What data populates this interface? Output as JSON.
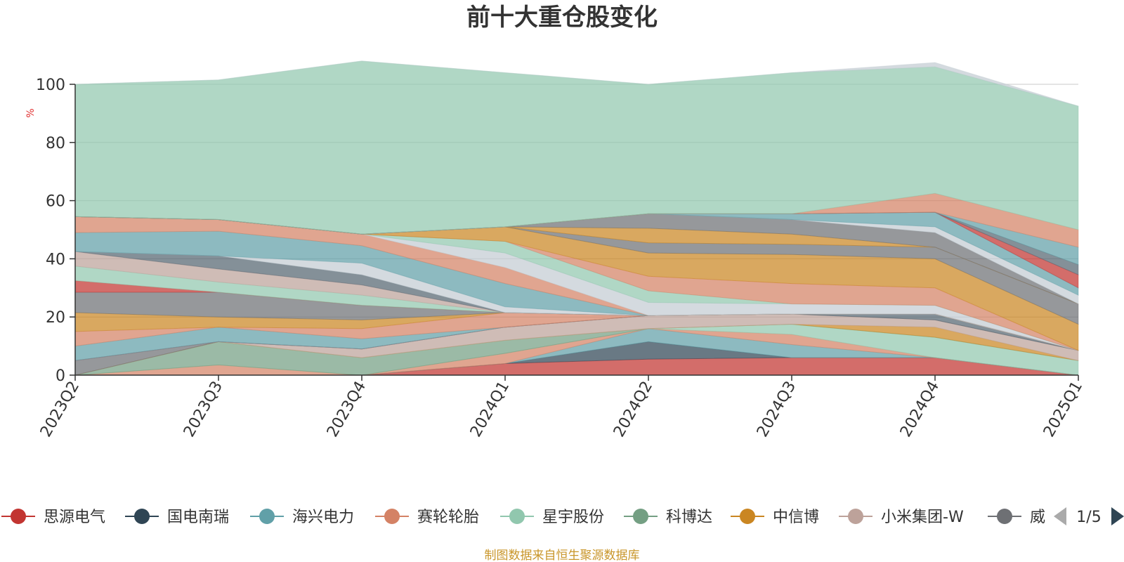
{
  "chart_data": {
    "type": "area",
    "stacked": true,
    "title": "前十大重仓股变化",
    "ylabel": "%",
    "ylim": [
      0,
      100
    ],
    "yticks": [
      0,
      20,
      40,
      60,
      80,
      100
    ],
    "categories": [
      "2023Q2",
      "2023Q3",
      "2023Q4",
      "2024Q1",
      "2024Q2",
      "2024Q3",
      "2024Q4",
      "2025Q1"
    ],
    "grid": true,
    "legend_position": "bottom",
    "legend_page": "1/5",
    "source": "制图数据来自恒生聚源数据库",
    "series": [
      {
        "name": "思源电气",
        "color": "#c23531",
        "values": [
          0,
          0,
          0,
          4,
          5.5,
          6,
          6,
          0
        ]
      },
      {
        "name": "国电南瑞",
        "color": "#2f4554",
        "values": [
          0,
          0,
          0,
          0,
          6,
          0,
          0,
          0
        ]
      },
      {
        "name": "海兴电力",
        "color": "#61a0a8",
        "values": [
          0,
          0,
          0,
          0,
          4.5,
          4.5,
          0,
          0
        ]
      },
      {
        "name": "赛轮轮胎",
        "color": "#d48265",
        "values": [
          0,
          3.5,
          0,
          3.5,
          0,
          3.5,
          0,
          0
        ]
      },
      {
        "name": "星宇股份",
        "color": "#91c7ae",
        "values": [
          0,
          0,
          0,
          0,
          0,
          3.5,
          7,
          5
        ]
      },
      {
        "name": "科博达",
        "color": "#749f83",
        "values": [
          0,
          8,
          6,
          4.5,
          0,
          0,
          0,
          0
        ]
      },
      {
        "name": "中信博",
        "color": "#ca8622",
        "values": [
          0,
          0,
          0,
          0,
          0,
          0,
          3.5,
          0
        ]
      },
      {
        "name": "小米集团-W",
        "color": "#bda29a",
        "values": [
          0,
          0,
          3,
          4.5,
          4.5,
          3.5,
          2.5,
          3.5
        ]
      },
      {
        "name": "威",
        "color": "#6e7074",
        "values": [
          5,
          0,
          0,
          0,
          0,
          0,
          0,
          0
        ]
      },
      {
        "name": "",
        "color": "#546570",
        "values": [
          0,
          0,
          0,
          0,
          0,
          0,
          2,
          0
        ]
      },
      {
        "name": "",
        "color": "#c4ccd3",
        "values": [
          0,
          0,
          0,
          0,
          0,
          0,
          0,
          0
        ]
      },
      {
        "name": "",
        "color": "#c23531",
        "values": [
          0,
          0,
          0,
          0,
          0,
          0,
          0,
          0
        ]
      },
      {
        "name": "",
        "color": "#61a0a8",
        "values": [
          5,
          5,
          3.5,
          0,
          0,
          0,
          0,
          0
        ]
      },
      {
        "name": "",
        "color": "#d48265",
        "values": [
          5,
          0,
          3.5,
          5,
          0,
          0,
          0,
          0
        ]
      },
      {
        "name": "",
        "color": "#ca8622",
        "values": [
          6.5,
          3.5,
          3,
          0,
          0,
          0,
          0,
          0
        ]
      },
      {
        "name": "",
        "color": "#6e7074",
        "values": [
          7,
          8.5,
          5,
          0,
          0,
          0,
          0,
          0
        ]
      },
      {
        "name": "",
        "color": "#c23531",
        "values": [
          4,
          0,
          0,
          0,
          0,
          0,
          0,
          0
        ]
      },
      {
        "name": "",
        "color": "#91c7ae",
        "values": [
          5,
          3.5,
          3.5,
          0,
          0,
          0,
          0,
          0
        ]
      },
      {
        "name": "",
        "color": "#bda29a",
        "values": [
          5,
          4.5,
          3.5,
          0,
          0,
          0,
          0,
          0
        ]
      },
      {
        "name": "",
        "color": "#546570",
        "values": [
          0,
          4.5,
          3.5,
          0,
          0,
          0,
          0,
          0
        ]
      },
      {
        "name": "",
        "color": "#c4ccd3",
        "values": [
          0,
          0,
          4,
          2,
          0,
          0,
          0,
          0
        ]
      },
      {
        "name": "",
        "color": "#61a0a8",
        "values": [
          6.5,
          8.5,
          6,
          8,
          0,
          0,
          0,
          0
        ]
      },
      {
        "name": "",
        "color": "#d48265",
        "values": [
          5.5,
          4,
          4,
          5.5,
          0,
          0,
          0,
          0
        ]
      },
      {
        "name": "",
        "color": "#c4ccd3",
        "values": [
          0,
          0,
          0,
          5,
          4.5,
          3.5,
          3,
          0
        ]
      },
      {
        "name": "",
        "color": "#91c7ae",
        "values": [
          0,
          0,
          0,
          4,
          4,
          0,
          0,
          0
        ]
      },
      {
        "name": "",
        "color": "#d48265",
        "values": [
          0,
          0,
          0,
          0,
          5,
          7,
          6,
          0
        ]
      },
      {
        "name": "",
        "color": "#ca8622",
        "values": [
          0,
          0,
          0,
          5,
          8,
          10,
          10,
          9
        ]
      },
      {
        "name": "",
        "color": "#6e7074",
        "values": [
          0,
          0,
          0,
          0,
          3.5,
          3.5,
          4,
          7
        ]
      },
      {
        "name": "",
        "color": "#ca8622",
        "values": [
          0,
          0,
          0,
          0,
          5,
          3.5,
          0,
          0
        ]
      },
      {
        "name": "",
        "color": "#6e7074",
        "values": [
          0,
          0,
          0,
          0,
          5,
          5,
          5,
          0
        ]
      },
      {
        "name": "",
        "color": "#c4ccd3",
        "values": [
          0,
          0,
          0,
          0,
          0,
          0,
          2,
          3
        ]
      },
      {
        "name": "",
        "color": "#61a0a8",
        "values": [
          0,
          0,
          0,
          0,
          0,
          2,
          5,
          2.5
        ]
      },
      {
        "name": "",
        "color": "#c23531",
        "values": [
          0,
          0,
          0,
          0,
          0,
          0,
          0,
          4.5
        ]
      },
      {
        "name": "",
        "color": "#546570",
        "values": [
          0,
          0,
          0,
          0,
          0,
          0,
          0,
          3.5
        ]
      },
      {
        "name": "",
        "color": "#61a0a8",
        "values": [
          0,
          0,
          0,
          0,
          0,
          0,
          0,
          6
        ]
      },
      {
        "name": "",
        "color": "#d48265",
        "values": [
          0,
          0,
          0,
          0,
          0,
          0,
          6.5,
          6
        ]
      },
      {
        "name": "",
        "color": "#91c7ae",
        "values": [
          45.5,
          48,
          59.5,
          53,
          44.5,
          48.5,
          43.5,
          42.5
        ]
      },
      {
        "name": "",
        "color": "#c4ccd3",
        "values": [
          0,
          0,
          0,
          0,
          0,
          0,
          1.5,
          0
        ]
      }
    ]
  }
}
